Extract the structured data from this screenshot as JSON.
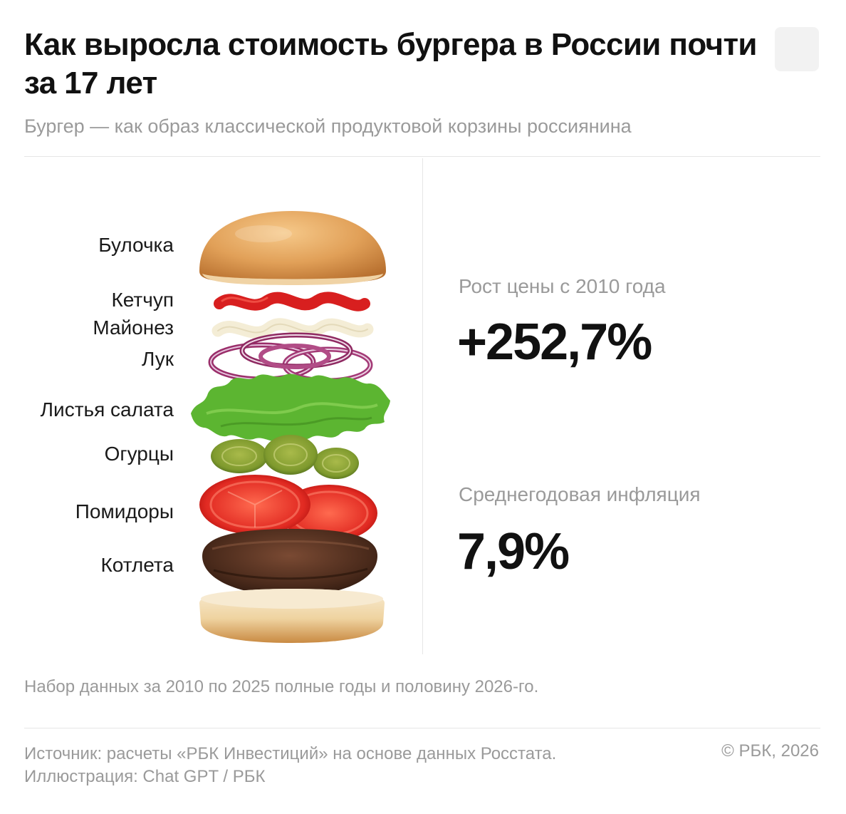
{
  "header": {
    "title": "Как выросла стоимость бургера в России почти за 17 лет",
    "subtitle": "Бургер — как образ классической продуктовой корзины россиянина"
  },
  "ingredients": [
    {
      "label": "Булочка",
      "icon": "bun-top-icon"
    },
    {
      "label": "Кетчуп",
      "icon": "ketchup-icon"
    },
    {
      "label": "Майонез",
      "icon": "mayonnaise-icon"
    },
    {
      "label": "Лук",
      "icon": "onion-rings-icon"
    },
    {
      "label": "Листья салата",
      "icon": "lettuce-icon"
    },
    {
      "label": "Огурцы",
      "icon": "pickles-icon"
    },
    {
      "label": "Помидоры",
      "icon": "tomato-slices-icon"
    },
    {
      "label": "Котлета",
      "icon": "patty-icon"
    }
  ],
  "stats": {
    "growth_label": "Рост цены с 2010 года",
    "growth_value": "+252,7%",
    "inflation_label": "Среднегодовая инфляция",
    "inflation_value": "7,9%"
  },
  "footer": {
    "note": "Набор данных за 2010 по 2025 полные годы и половину 2026-го.",
    "source_line1": "Источник: расчеты «РБК Инвестиций» на основе данных Росстата.",
    "source_line2": "Иллюстрация: Chat GPT / РБК",
    "copyright": "© РБК, 2026"
  },
  "colors": {
    "text": "#111111",
    "muted": "#9a9a9a",
    "divider": "#e6e6e6",
    "bun": "#e3a35a",
    "ketchup": "#d81f1f",
    "lettuce": "#5cb531",
    "pickle": "#7f9a2e",
    "tomato": "#e8322c",
    "patty": "#5a3524",
    "onion": "#9a2e6a"
  }
}
